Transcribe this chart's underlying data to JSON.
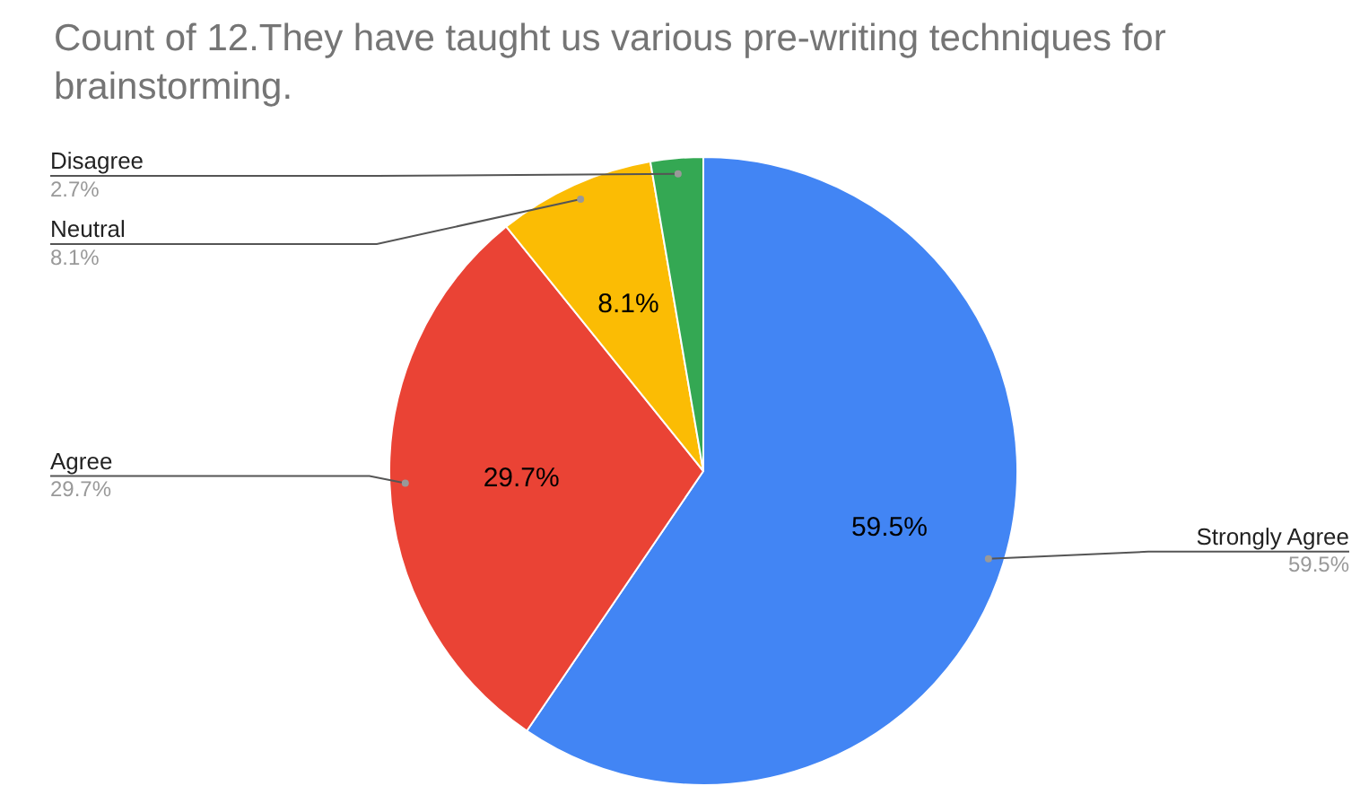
{
  "chart_data": {
    "type": "pie",
    "title": "Count of 12.They have taught us various pre-writing techniques for brainstorming.",
    "categories": [
      "Strongly Agree",
      "Agree",
      "Neutral",
      "Disagree"
    ],
    "values": [
      59.5,
      29.7,
      8.1,
      2.7
    ],
    "colors": [
      "#4285f4",
      "#ea4335",
      "#fbbc04",
      "#34a853"
    ],
    "value_labels": [
      "59.5%",
      "29.7%",
      "8.1%",
      "2.7%"
    ],
    "legend": false
  }
}
